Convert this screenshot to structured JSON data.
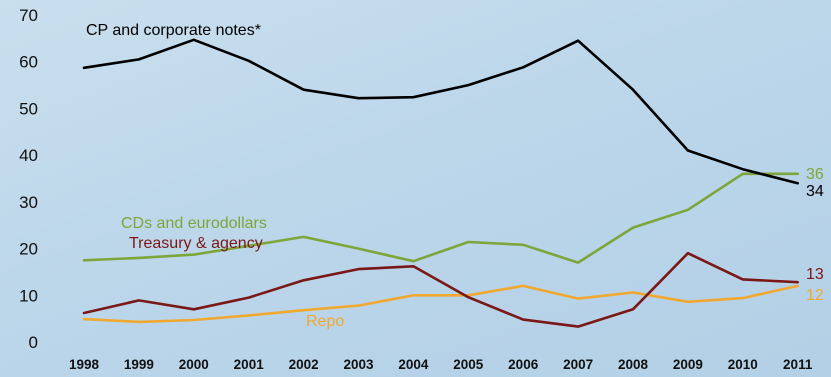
{
  "chart_data": {
    "type": "line",
    "x": [
      "1998",
      "1999",
      "2000",
      "2001",
      "2002",
      "2003",
      "2004",
      "2005",
      "2006",
      "2007",
      "2008",
      "2009",
      "2010",
      "2011"
    ],
    "ylim": [
      0,
      70
    ],
    "yticks": [
      0,
      10,
      20,
      30,
      40,
      50,
      60,
      70
    ],
    "grid": false,
    "series": [
      {
        "name": "CP and corporate notes*",
        "color": "#000000",
        "values": [
          58.7,
          60.5,
          64.7,
          60.2,
          54.0,
          52.2,
          52.4,
          55.0,
          58.8,
          64.5,
          54.0,
          41.0,
          37.0,
          34.0
        ],
        "end_label": "34",
        "end_label_color": "#000000"
      },
      {
        "name": "CDs and eurodollars",
        "color": "#7da63a",
        "values": [
          17.5,
          18.0,
          18.7,
          20.6,
          22.5,
          20.0,
          17.3,
          21.4,
          20.8,
          17.0,
          24.5,
          28.3,
          36.0,
          36.0
        ],
        "end_label": "36",
        "end_label_color": "#7da63a"
      },
      {
        "name": "Treasury & agency",
        "color": "#7a1818",
        "values": [
          6.2,
          8.9,
          7.0,
          9.5,
          13.2,
          15.6,
          16.2,
          9.6,
          4.8,
          3.3,
          7.0,
          19.0,
          13.4,
          12.8
        ],
        "end_label": "13",
        "end_label_color": "#7a1818"
      },
      {
        "name": "Repo",
        "color": "#f0a830",
        "values": [
          4.9,
          4.3,
          4.7,
          5.7,
          6.8,
          7.8,
          10.0,
          10.0,
          12.0,
          9.3,
          10.6,
          8.6,
          9.4,
          12.0
        ],
        "end_label": "12",
        "end_label_color": "#f0a830"
      }
    ]
  }
}
